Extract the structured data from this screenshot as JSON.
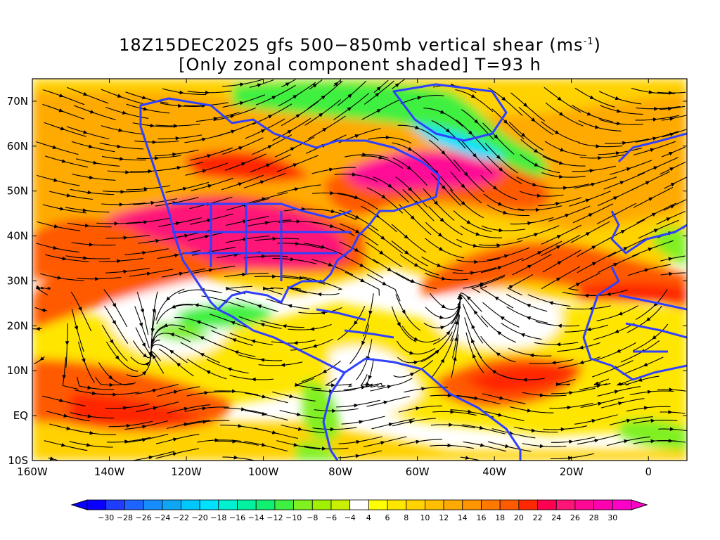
{
  "title": {
    "line1_prefix": "18Z15DEC2025 gfs 500−850mb vertical shear (ms",
    "line1_exp": "-1",
    "line1_suffix": ")",
    "line2": "[Only zonal component shaded] T=93 h"
  },
  "map": {
    "lon_range": [
      -160,
      10
    ],
    "lat_range": [
      -10,
      75
    ],
    "lon_ticks": [
      "160W",
      "140W",
      "120W",
      "100W",
      "80W",
      "60W",
      "40W",
      "20W",
      "0"
    ],
    "lat_ticks": [
      "10S",
      "EQ",
      "10N",
      "20N",
      "30N",
      "40N",
      "50N",
      "60N",
      "70N"
    ],
    "coastline_color": "#3040ff",
    "streamline_color": "#000000"
  },
  "colorbar": {
    "labels": [
      "-30",
      "-28",
      "-26",
      "-24",
      "-22",
      "-20",
      "-18",
      "-16",
      "-14",
      "-12",
      "-10",
      "-8",
      "-6",
      "-4",
      "4",
      "6",
      "8",
      "10",
      "12",
      "14",
      "16",
      "18",
      "20",
      "22",
      "24",
      "26",
      "28",
      "30"
    ],
    "colors": [
      "#0a00ff",
      "#1f3dff",
      "#1e64ff",
      "#178cff",
      "#0fa5f5",
      "#00c8ff",
      "#00e0ff",
      "#00f0d0",
      "#00f2a0",
      "#10f070",
      "#40f040",
      "#80f020",
      "#a0f000",
      "#c8f000",
      "#ffffff",
      "#ffff00",
      "#ffe600",
      "#ffd200",
      "#ffbe00",
      "#ffaa00",
      "#ff9600",
      "#ff7800",
      "#ff5a00",
      "#ff2800",
      "#ff0050",
      "#ff1478",
      "#ff0896",
      "#ff00b0",
      "#ff00c8"
    ]
  }
}
